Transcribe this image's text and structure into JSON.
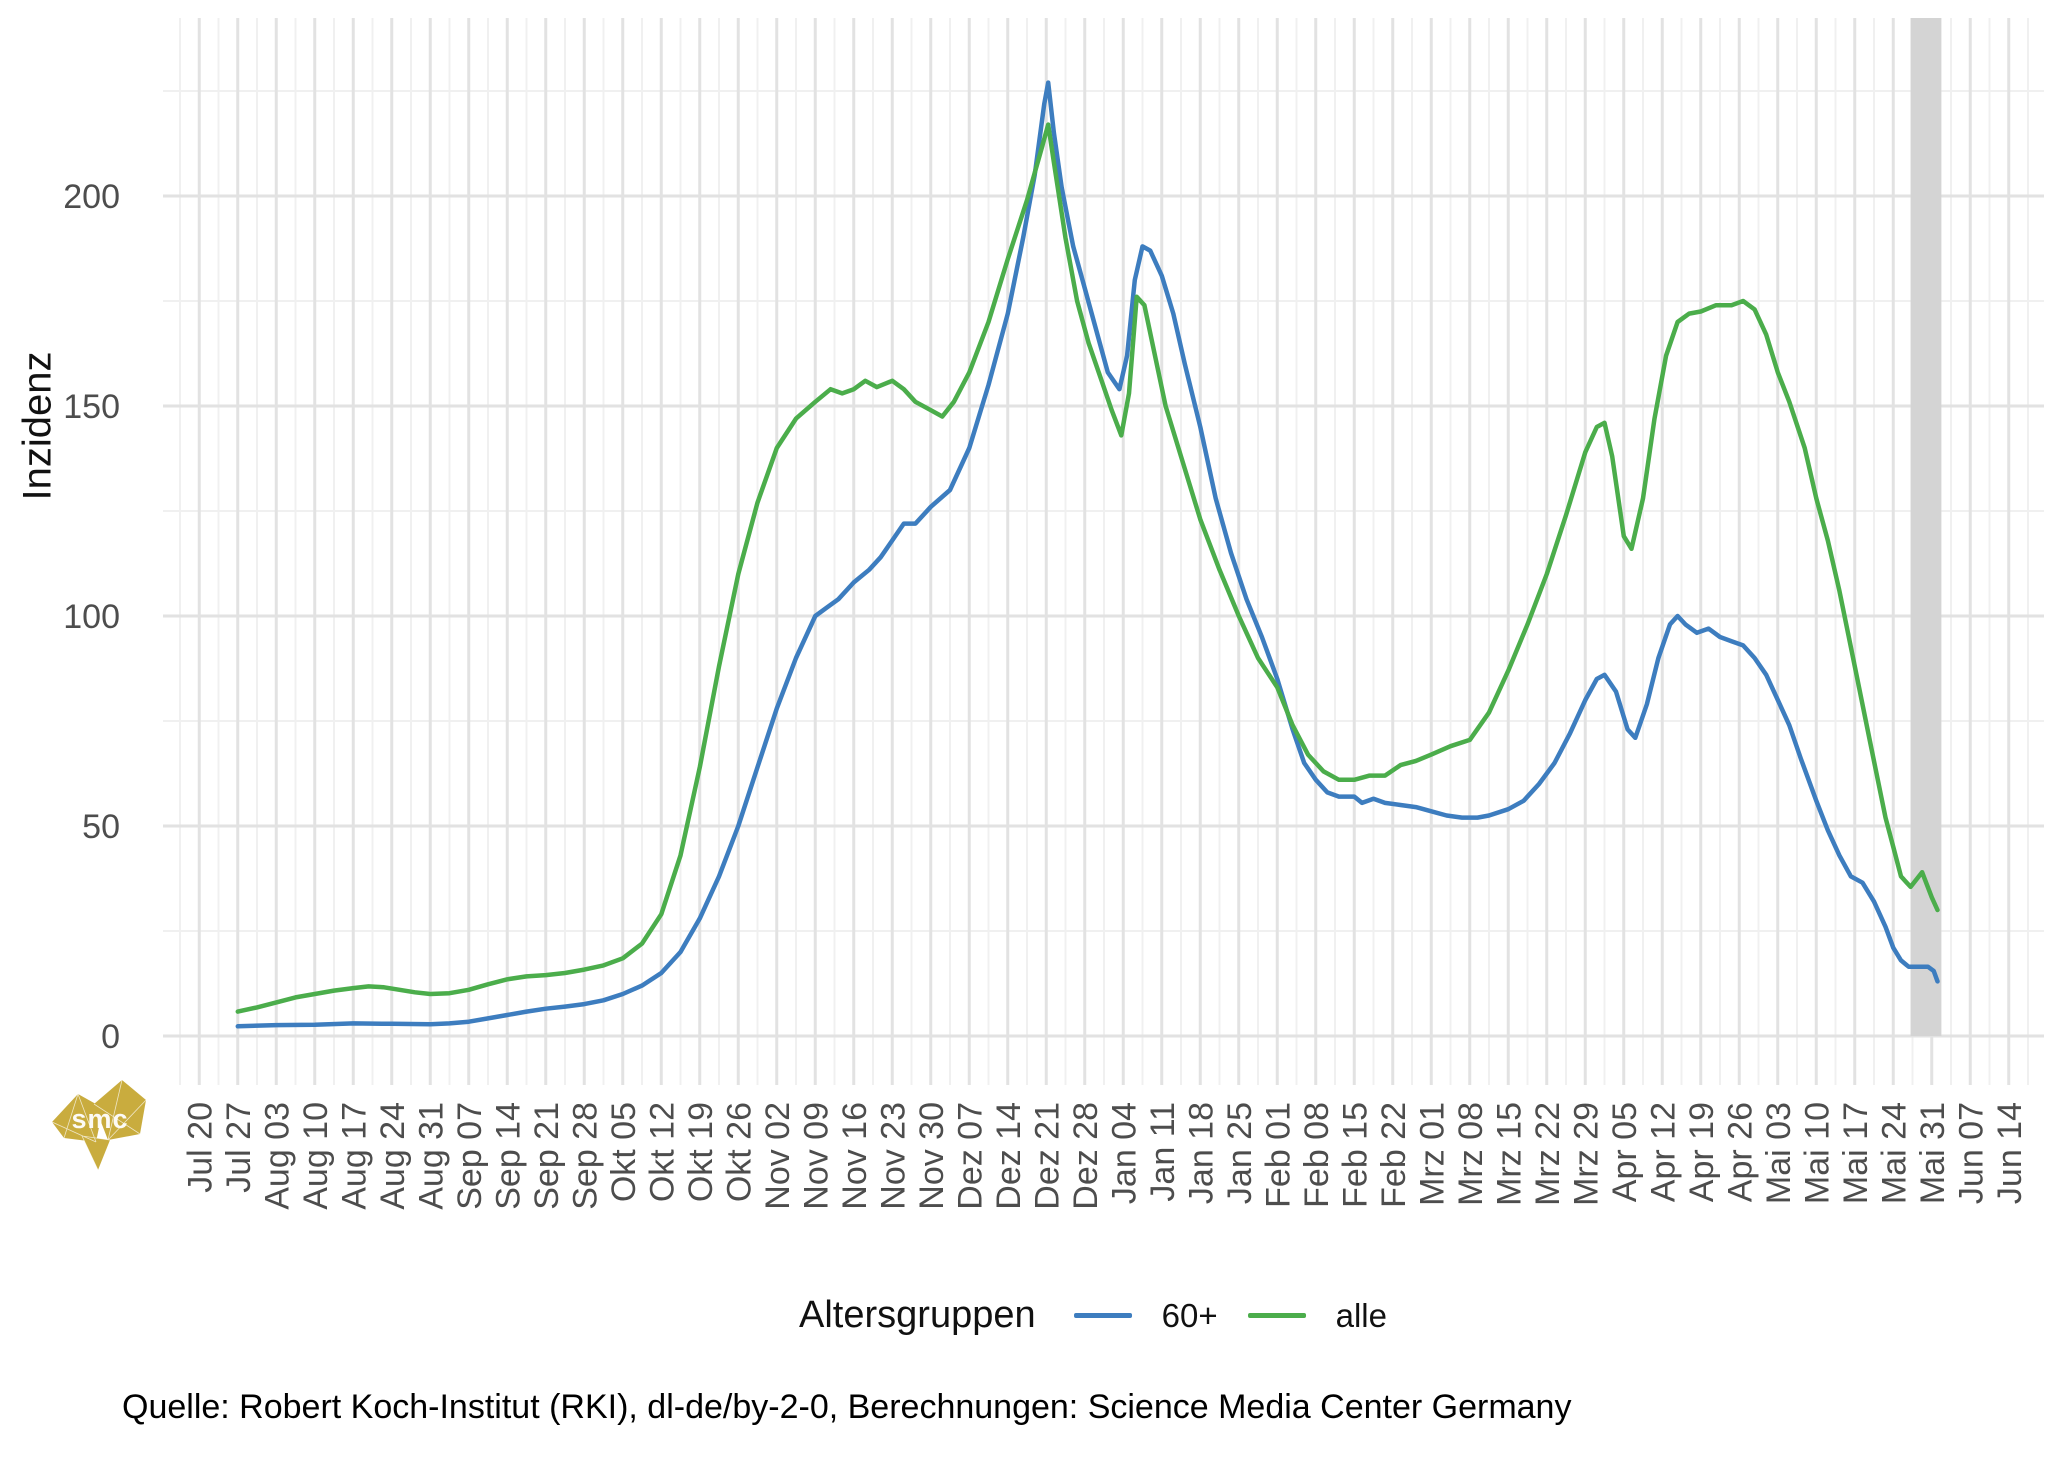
{
  "y_axis": {
    "title": "Inzidenz",
    "ticks": [
      0,
      50,
      100,
      150,
      200
    ],
    "range": [
      0,
      242
    ]
  },
  "x_axis": {
    "labels": [
      "Jul 20",
      "Jul 27",
      "Aug 03",
      "Aug 10",
      "Aug 17",
      "Aug 24",
      "Aug 31",
      "Sep 07",
      "Sep 14",
      "Sep 21",
      "Sep 28",
      "Okt 05",
      "Okt 12",
      "Okt 19",
      "Okt 26",
      "Nov 02",
      "Nov 09",
      "Nov 16",
      "Nov 23",
      "Nov 30",
      "Dez 07",
      "Dez 14",
      "Dez 21",
      "Dez 28",
      "Jan 04",
      "Jan 11",
      "Jan 18",
      "Jan 25",
      "Feb 01",
      "Feb 08",
      "Feb 15",
      "Feb 22",
      "Mrz 01",
      "Mrz 08",
      "Mrz 15",
      "Mrz 22",
      "Mrz 29",
      "Apr 05",
      "Apr 12",
      "Apr 19",
      "Apr 26",
      "Mai 03",
      "Mai 10",
      "Mai 17",
      "Mai 24",
      "Mai 31",
      "Jun 07",
      "Jun 14"
    ]
  },
  "legend": {
    "title": "Altersgruppen"
  },
  "caption": "Quelle: Robert Koch-Institut (RKI), dl-de/by-2-0, Berechnungen: Science Media Center Germany",
  "logo": {
    "text": "smc",
    "color": "#c9ac3e"
  },
  "colors": {
    "grid_major": "#e2e2e2",
    "grid_minor": "#f0f0f0",
    "axis_text": "#4d4d4d",
    "shaded_region": "#d4d4d4"
  },
  "shaded_region": {
    "from_week": 44.45,
    "to_week": 45.25
  },
  "chart_data": {
    "type": "line",
    "title": "",
    "xlabel": "",
    "ylabel": "Inzidenz",
    "x_unit": "weeks_since_Jul_20",
    "ylim": [
      0,
      242
    ],
    "grid": true,
    "legend_position": "bottom",
    "categories": [
      "Jul 20",
      "Jul 27",
      "Aug 03",
      "Aug 10",
      "Aug 17",
      "Aug 24",
      "Aug 31",
      "Sep 07",
      "Sep 14",
      "Sep 21",
      "Sep 28",
      "Okt 05",
      "Okt 12",
      "Okt 19",
      "Okt 26",
      "Nov 02",
      "Nov 09",
      "Nov 16",
      "Nov 23",
      "Nov 30",
      "Dez 07",
      "Dez 14",
      "Dez 21",
      "Dez 28",
      "Jan 04",
      "Jan 11",
      "Jan 18",
      "Jan 25",
      "Feb 01",
      "Feb 08",
      "Feb 15",
      "Feb 22",
      "Mrz 01",
      "Mrz 08",
      "Mrz 15",
      "Mrz 22",
      "Mrz 29",
      "Apr 05",
      "Apr 12",
      "Apr 19",
      "Apr 26",
      "Mai 03",
      "Mai 10",
      "Mai 17",
      "Mai 24",
      "Mai 31",
      "Jun 07",
      "Jun 14"
    ],
    "series": [
      {
        "name": "60+",
        "color": "#3d7dbf",
        "points": [
          [
            1,
            2.3
          ],
          [
            2,
            2.6
          ],
          [
            3,
            2.7
          ],
          [
            4,
            3
          ],
          [
            5,
            2.9
          ],
          [
            6,
            2.8
          ],
          [
            6.5,
            3
          ],
          [
            7,
            3.4
          ],
          [
            7.5,
            4.2
          ],
          [
            8,
            5
          ],
          [
            8.5,
            5.8
          ],
          [
            9,
            6.5
          ],
          [
            9.5,
            7
          ],
          [
            10,
            7.6
          ],
          [
            10.5,
            8.5
          ],
          [
            11,
            10
          ],
          [
            11.5,
            12
          ],
          [
            12,
            15
          ],
          [
            12.5,
            20
          ],
          [
            13,
            28
          ],
          [
            13.5,
            38
          ],
          [
            14,
            50
          ],
          [
            14.5,
            64
          ],
          [
            15,
            78
          ],
          [
            15.5,
            90
          ],
          [
            16,
            100
          ],
          [
            16.3,
            102
          ],
          [
            16.6,
            104
          ],
          [
            17,
            108
          ],
          [
            17.4,
            111
          ],
          [
            17.7,
            114
          ],
          [
            18,
            118
          ],
          [
            18.3,
            122
          ],
          [
            18.6,
            122
          ],
          [
            19,
            126
          ],
          [
            19.5,
            130
          ],
          [
            20,
            140
          ],
          [
            20.5,
            155
          ],
          [
            21,
            172
          ],
          [
            21.4,
            190
          ],
          [
            21.7,
            205
          ],
          [
            21.95,
            222
          ],
          [
            22.05,
            227
          ],
          [
            22.2,
            215
          ],
          [
            22.4,
            202
          ],
          [
            22.7,
            188
          ],
          [
            23,
            178
          ],
          [
            23.3,
            168
          ],
          [
            23.6,
            158
          ],
          [
            23.9,
            154
          ],
          [
            24.1,
            162
          ],
          [
            24.3,
            180
          ],
          [
            24.5,
            188
          ],
          [
            24.7,
            187
          ],
          [
            25,
            181
          ],
          [
            25.3,
            172
          ],
          [
            25.6,
            160
          ],
          [
            26,
            145
          ],
          [
            26.4,
            128
          ],
          [
            26.8,
            115
          ],
          [
            27.2,
            104
          ],
          [
            27.6,
            95
          ],
          [
            28,
            85
          ],
          [
            28.4,
            73
          ],
          [
            28.7,
            65
          ],
          [
            29,
            61
          ],
          [
            29.3,
            58
          ],
          [
            29.6,
            57
          ],
          [
            30,
            57
          ],
          [
            30.2,
            55.5
          ],
          [
            30.5,
            56.5
          ],
          [
            30.8,
            55.5
          ],
          [
            31.2,
            55
          ],
          [
            31.6,
            54.5
          ],
          [
            32,
            53.5
          ],
          [
            32.4,
            52.5
          ],
          [
            32.8,
            52
          ],
          [
            33.2,
            52
          ],
          [
            33.5,
            52.5
          ],
          [
            34,
            54
          ],
          [
            34.4,
            56
          ],
          [
            34.8,
            60
          ],
          [
            35.2,
            65
          ],
          [
            35.6,
            72
          ],
          [
            36,
            80
          ],
          [
            36.3,
            85
          ],
          [
            36.5,
            86
          ],
          [
            36.8,
            82
          ],
          [
            37.1,
            73
          ],
          [
            37.3,
            71
          ],
          [
            37.6,
            79
          ],
          [
            37.9,
            90
          ],
          [
            38.2,
            98
          ],
          [
            38.4,
            100
          ],
          [
            38.6,
            98
          ],
          [
            38.9,
            96
          ],
          [
            39.2,
            97
          ],
          [
            39.5,
            95
          ],
          [
            39.8,
            94
          ],
          [
            40.1,
            93
          ],
          [
            40.4,
            90
          ],
          [
            40.7,
            86
          ],
          [
            41,
            80
          ],
          [
            41.3,
            74
          ],
          [
            41.6,
            66
          ],
          [
            42,
            56
          ],
          [
            42.3,
            49
          ],
          [
            42.6,
            43
          ],
          [
            42.9,
            38
          ],
          [
            43.2,
            36.5
          ],
          [
            43.5,
            32
          ],
          [
            43.8,
            26
          ],
          [
            44,
            21
          ],
          [
            44.2,
            18
          ],
          [
            44.4,
            16.5
          ],
          [
            44.9,
            16.5
          ],
          [
            45.05,
            15.5
          ],
          [
            45.15,
            13
          ]
        ]
      },
      {
        "name": "alle",
        "color": "#4bad4b",
        "points": [
          [
            1,
            5.8
          ],
          [
            1.5,
            6.8
          ],
          [
            2,
            8
          ],
          [
            2.5,
            9.2
          ],
          [
            3,
            10
          ],
          [
            3.5,
            10.8
          ],
          [
            4,
            11.4
          ],
          [
            4.4,
            11.8
          ],
          [
            4.8,
            11.6
          ],
          [
            5.2,
            11
          ],
          [
            5.6,
            10.4
          ],
          [
            6,
            10
          ],
          [
            6.5,
            10.2
          ],
          [
            7,
            11
          ],
          [
            7.5,
            12.3
          ],
          [
            8,
            13.5
          ],
          [
            8.5,
            14.2
          ],
          [
            9,
            14.5
          ],
          [
            9.5,
            15
          ],
          [
            10,
            15.8
          ],
          [
            10.5,
            16.8
          ],
          [
            11,
            18.5
          ],
          [
            11.5,
            22
          ],
          [
            12,
            29
          ],
          [
            12.5,
            43
          ],
          [
            13,
            64
          ],
          [
            13.5,
            88
          ],
          [
            14,
            110
          ],
          [
            14.5,
            127
          ],
          [
            15,
            140
          ],
          [
            15.5,
            147
          ],
          [
            16,
            151
          ],
          [
            16.4,
            154
          ],
          [
            16.7,
            153
          ],
          [
            17,
            154
          ],
          [
            17.3,
            156
          ],
          [
            17.6,
            154.5
          ],
          [
            18,
            156
          ],
          [
            18.3,
            154
          ],
          [
            18.6,
            151
          ],
          [
            19,
            149
          ],
          [
            19.3,
            147.5
          ],
          [
            19.6,
            151
          ],
          [
            20,
            158
          ],
          [
            20.5,
            170
          ],
          [
            21,
            185
          ],
          [
            21.5,
            199
          ],
          [
            21.9,
            212
          ],
          [
            22.05,
            217
          ],
          [
            22.2,
            208
          ],
          [
            22.5,
            190
          ],
          [
            22.8,
            175
          ],
          [
            23.1,
            165
          ],
          [
            23.4,
            157
          ],
          [
            23.7,
            149
          ],
          [
            23.95,
            143
          ],
          [
            24.15,
            153
          ],
          [
            24.35,
            176
          ],
          [
            24.55,
            174
          ],
          [
            24.8,
            163
          ],
          [
            25.1,
            150
          ],
          [
            25.5,
            138
          ],
          [
            26,
            123
          ],
          [
            26.5,
            111
          ],
          [
            27,
            100
          ],
          [
            27.5,
            90
          ],
          [
            28,
            83
          ],
          [
            28.4,
            74
          ],
          [
            28.8,
            67
          ],
          [
            29.2,
            63
          ],
          [
            29.6,
            61
          ],
          [
            30,
            61
          ],
          [
            30.4,
            62
          ],
          [
            30.8,
            62
          ],
          [
            31.2,
            64.5
          ],
          [
            31.6,
            65.5
          ],
          [
            32,
            67
          ],
          [
            32.5,
            69
          ],
          [
            33,
            70.5
          ],
          [
            33.5,
            77
          ],
          [
            34,
            87
          ],
          [
            34.5,
            98
          ],
          [
            35,
            110
          ],
          [
            35.5,
            124
          ],
          [
            36,
            139
          ],
          [
            36.3,
            145
          ],
          [
            36.5,
            146
          ],
          [
            36.7,
            138
          ],
          [
            37,
            119
          ],
          [
            37.2,
            116
          ],
          [
            37.5,
            128
          ],
          [
            37.8,
            147
          ],
          [
            38.1,
            162
          ],
          [
            38.4,
            170
          ],
          [
            38.7,
            172
          ],
          [
            39,
            172.5
          ],
          [
            39.4,
            174
          ],
          [
            39.8,
            174
          ],
          [
            40.1,
            175
          ],
          [
            40.4,
            173
          ],
          [
            40.7,
            167
          ],
          [
            41,
            158
          ],
          [
            41.3,
            151
          ],
          [
            41.7,
            140
          ],
          [
            42,
            128
          ],
          [
            42.3,
            118
          ],
          [
            42.6,
            106
          ],
          [
            43,
            88
          ],
          [
            43.4,
            70
          ],
          [
            43.8,
            52
          ],
          [
            44,
            45
          ],
          [
            44.2,
            38
          ],
          [
            44.45,
            35.5
          ],
          [
            44.75,
            39
          ],
          [
            45,
            33
          ],
          [
            45.15,
            30
          ]
        ]
      }
    ]
  }
}
